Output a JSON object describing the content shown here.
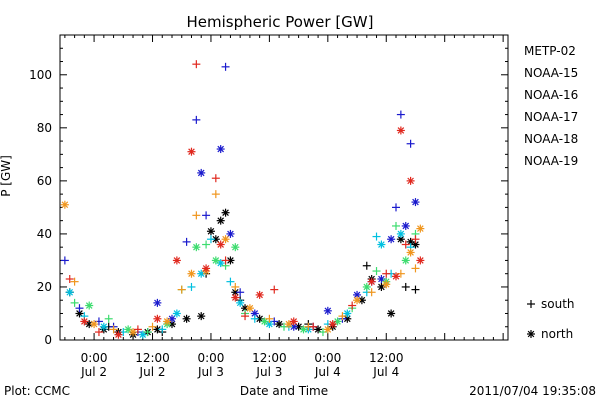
{
  "chart_data": {
    "type": "scatter",
    "title": "Hemispheric Power [GW]",
    "ylabel": "P [GW]",
    "xlabel": "Date and Time",
    "ylim": [
      0,
      115
    ],
    "xlim_hours": [
      -7,
      85
    ],
    "yticks": [
      0,
      20,
      40,
      60,
      80,
      100
    ],
    "xticks": [
      {
        "hour": 0,
        "time": "0:00",
        "date": "Jul 2"
      },
      {
        "hour": 12,
        "time": "12:00",
        "date": "Jul 2"
      },
      {
        "hour": 24,
        "time": "0:00",
        "date": "Jul 3"
      },
      {
        "hour": 36,
        "time": "12:00",
        "date": "Jul 3"
      },
      {
        "hour": 48,
        "time": "0:00",
        "date": "Jul 4"
      },
      {
        "hour": 60,
        "time": "12:00",
        "date": "Jul 4"
      }
    ],
    "legend_position": "right",
    "marker_legend": [
      {
        "symbol": "+",
        "label": "south"
      },
      {
        "symbol": "*",
        "label": "north"
      }
    ],
    "series": [
      {
        "name": "METP-02",
        "color": "#000000",
        "points": [
          [
            -3,
            10,
            "*"
          ],
          [
            -1,
            6,
            "*"
          ],
          [
            2,
            4,
            "*"
          ],
          [
            5,
            3,
            "*"
          ],
          [
            8,
            2,
            "*"
          ],
          [
            11,
            3,
            "*"
          ],
          [
            13,
            4,
            "*"
          ],
          [
            16,
            6,
            "*"
          ],
          [
            19,
            8,
            "*"
          ],
          [
            22,
            9,
            "*"
          ],
          [
            24,
            41,
            "*"
          ],
          [
            25,
            38,
            "*"
          ],
          [
            26,
            45,
            "*"
          ],
          [
            27,
            48,
            "*"
          ],
          [
            28,
            30,
            "*"
          ],
          [
            29,
            18,
            "*"
          ],
          [
            31,
            12,
            "*"
          ],
          [
            34,
            8,
            "*"
          ],
          [
            38,
            6,
            "*"
          ],
          [
            42,
            5,
            "*"
          ],
          [
            46,
            4,
            "*"
          ],
          [
            49,
            5,
            "*"
          ],
          [
            52,
            8,
            "*"
          ],
          [
            55,
            15,
            "*"
          ],
          [
            57,
            23,
            "*"
          ],
          [
            59,
            20,
            "*"
          ],
          [
            61,
            10,
            "*"
          ],
          [
            63,
            38,
            "*"
          ],
          [
            65,
            37,
            "*"
          ],
          [
            66,
            36,
            "*"
          ],
          [
            -5,
            18,
            "+"
          ],
          [
            3,
            5,
            "+"
          ],
          [
            14,
            3,
            "+"
          ],
          [
            23,
            25,
            "+"
          ],
          [
            30,
            15,
            "+"
          ],
          [
            44,
            6,
            "+"
          ],
          [
            56,
            28,
            "+"
          ],
          [
            64,
            20,
            "+"
          ],
          [
            66,
            19,
            "+"
          ]
        ]
      },
      {
        "name": "NOAA-15",
        "color": "#1a1acd",
        "points": [
          [
            -6,
            30,
            "+"
          ],
          [
            -3,
            12,
            "+"
          ],
          [
            1,
            7,
            "+"
          ],
          [
            4,
            5,
            "+"
          ],
          [
            9,
            3,
            "+"
          ],
          [
            13,
            14,
            "*"
          ],
          [
            16,
            8,
            "*"
          ],
          [
            19,
            37,
            "+"
          ],
          [
            21,
            83,
            "+"
          ],
          [
            22,
            63,
            "*"
          ],
          [
            23,
            47,
            "+"
          ],
          [
            26,
            72,
            "*"
          ],
          [
            27,
            103,
            "+"
          ],
          [
            28,
            40,
            "*"
          ],
          [
            30,
            18,
            "+"
          ],
          [
            33,
            10,
            "*"
          ],
          [
            37,
            7,
            "+"
          ],
          [
            41,
            5,
            "*"
          ],
          [
            45,
            5,
            "+"
          ],
          [
            48,
            11,
            "*"
          ],
          [
            51,
            8,
            "+"
          ],
          [
            54,
            17,
            "*"
          ],
          [
            57,
            22,
            "+"
          ],
          [
            59,
            23,
            "*"
          ],
          [
            61,
            38,
            "*"
          ],
          [
            62,
            50,
            "+"
          ],
          [
            63,
            85,
            "+"
          ],
          [
            64,
            43,
            "*"
          ],
          [
            65,
            74,
            "+"
          ],
          [
            66,
            52,
            "*"
          ]
        ]
      },
      {
        "name": "NOAA-16",
        "color": "#00c0e0",
        "points": [
          [
            -5,
            18,
            "*"
          ],
          [
            -2,
            9,
            "+"
          ],
          [
            2,
            5,
            "*"
          ],
          [
            6,
            3,
            "+"
          ],
          [
            10,
            2,
            "*"
          ],
          [
            14,
            4,
            "+"
          ],
          [
            17,
            10,
            "*"
          ],
          [
            20,
            20,
            "+"
          ],
          [
            22,
            25,
            "*"
          ],
          [
            24,
            38,
            "+"
          ],
          [
            26,
            29,
            "*"
          ],
          [
            28,
            22,
            "+"
          ],
          [
            30,
            14,
            "*"
          ],
          [
            33,
            8,
            "+"
          ],
          [
            36,
            6,
            "*"
          ],
          [
            40,
            5,
            "+"
          ],
          [
            44,
            4,
            "*"
          ],
          [
            48,
            6,
            "+"
          ],
          [
            52,
            10,
            "*"
          ],
          [
            56,
            18,
            "+"
          ],
          [
            58,
            39,
            "+"
          ],
          [
            59,
            36,
            "*"
          ],
          [
            61,
            25,
            "+"
          ],
          [
            63,
            40,
            "*"
          ],
          [
            65,
            35,
            "+"
          ]
        ]
      },
      {
        "name": "NOAA-17",
        "color": "#3cdc6e",
        "points": [
          [
            -4,
            14,
            "+"
          ],
          [
            -1,
            13,
            "*"
          ],
          [
            3,
            8,
            "+"
          ],
          [
            7,
            4,
            "*"
          ],
          [
            11,
            3,
            "+"
          ],
          [
            15,
            6,
            "*"
          ],
          [
            18,
            19,
            "+"
          ],
          [
            21,
            35,
            "*"
          ],
          [
            23,
            36,
            "+"
          ],
          [
            25,
            30,
            "*"
          ],
          [
            27,
            28,
            "+"
          ],
          [
            29,
            35,
            "*"
          ],
          [
            31,
            10,
            "+"
          ],
          [
            35,
            7,
            "*"
          ],
          [
            39,
            5,
            "+"
          ],
          [
            43,
            4,
            "*"
          ],
          [
            47,
            3,
            "+"
          ],
          [
            50,
            7,
            "*"
          ],
          [
            53,
            12,
            "+"
          ],
          [
            56,
            20,
            "*"
          ],
          [
            58,
            26,
            "+"
          ],
          [
            60,
            22,
            "*"
          ],
          [
            62,
            43,
            "+"
          ],
          [
            64,
            30,
            "*"
          ],
          [
            66,
            40,
            "+"
          ]
        ]
      },
      {
        "name": "NOAA-18",
        "color": "#f0961e",
        "points": [
          [
            -6,
            51,
            "*"
          ],
          [
            -4,
            22,
            "+"
          ],
          [
            0,
            6,
            "*"
          ],
          [
            4,
            4,
            "+"
          ],
          [
            8,
            3,
            "*"
          ],
          [
            12,
            5,
            "+"
          ],
          [
            15,
            7,
            "*"
          ],
          [
            18,
            19,
            "+"
          ],
          [
            20,
            25,
            "*"
          ],
          [
            21,
            47,
            "+"
          ],
          [
            23,
            26,
            "*"
          ],
          [
            25,
            55,
            "+"
          ],
          [
            27,
            38,
            "*"
          ],
          [
            29,
            20,
            "+"
          ],
          [
            32,
            12,
            "*"
          ],
          [
            36,
            8,
            "+"
          ],
          [
            40,
            6,
            "*"
          ],
          [
            44,
            5,
            "+"
          ],
          [
            48,
            4,
            "*"
          ],
          [
            51,
            9,
            "+"
          ],
          [
            54,
            15,
            "*"
          ],
          [
            57,
            18,
            "+"
          ],
          [
            60,
            21,
            "*"
          ],
          [
            63,
            25,
            "+"
          ],
          [
            65,
            33,
            "*"
          ],
          [
            66,
            27,
            "+"
          ],
          [
            67,
            42,
            "*"
          ]
        ]
      },
      {
        "name": "NOAA-19",
        "color": "#e0281e",
        "points": [
          [
            -5,
            23,
            "+"
          ],
          [
            -2,
            7,
            "*"
          ],
          [
            1,
            3,
            "+"
          ],
          [
            5,
            2,
            "*"
          ],
          [
            9,
            4,
            "+"
          ],
          [
            13,
            8,
            "*"
          ],
          [
            17,
            30,
            "*"
          ],
          [
            20,
            71,
            "*"
          ],
          [
            21,
            104,
            "+"
          ],
          [
            23,
            27,
            "*"
          ],
          [
            25,
            61,
            "+"
          ],
          [
            26,
            36,
            "*"
          ],
          [
            27,
            30,
            "+"
          ],
          [
            29,
            16,
            "*"
          ],
          [
            31,
            9,
            "+"
          ],
          [
            34,
            17,
            "*"
          ],
          [
            37,
            19,
            "+"
          ],
          [
            41,
            7,
            "*"
          ],
          [
            45,
            5,
            "+"
          ],
          [
            49,
            6,
            "*"
          ],
          [
            53,
            13,
            "+"
          ],
          [
            57,
            22,
            "*"
          ],
          [
            60,
            25,
            "+"
          ],
          [
            62,
            24,
            "*"
          ],
          [
            63,
            79,
            "*"
          ],
          [
            64,
            36,
            "+"
          ],
          [
            65,
            60,
            "*"
          ],
          [
            66,
            38,
            "+"
          ],
          [
            67,
            30,
            "*"
          ]
        ]
      }
    ]
  },
  "footer": {
    "plot_credit": "Plot: CCMC",
    "timestamp": "2011/07/04 19:35:08"
  }
}
